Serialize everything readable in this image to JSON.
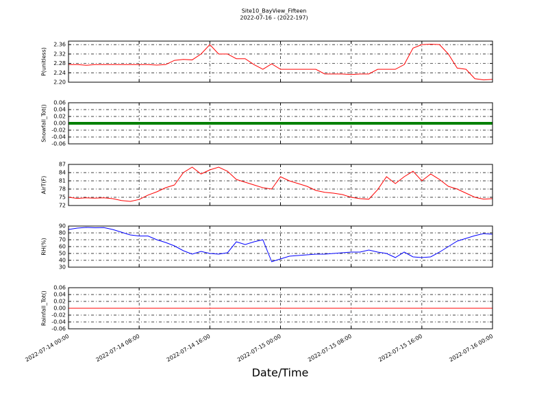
{
  "chart_data": [
    {
      "type": "line",
      "title": "Site10_BayView_Fifteen",
      "subtitle": "2022-07-16 - (2022-197)",
      "ylabel": "P(unitless)",
      "xlim": [
        "2022-07-14 00:00",
        "2022-07-16 00:00"
      ],
      "x": [
        "2022-07-14 00:00",
        "2022-07-14 01:00",
        "2022-07-14 02:00",
        "2022-07-14 03:00",
        "2022-07-14 04:00",
        "2022-07-14 05:00",
        "2022-07-14 06:00",
        "2022-07-14 07:00",
        "2022-07-14 08:00",
        "2022-07-14 09:00",
        "2022-07-14 10:00",
        "2022-07-14 11:00",
        "2022-07-14 12:00",
        "2022-07-14 13:00",
        "2022-07-14 14:00",
        "2022-07-14 15:00",
        "2022-07-14 16:00",
        "2022-07-14 17:00",
        "2022-07-14 18:00",
        "2022-07-14 19:00",
        "2022-07-14 20:00",
        "2022-07-14 21:00",
        "2022-07-14 22:00",
        "2022-07-14 23:00",
        "2022-07-15 00:00",
        "2022-07-15 01:00",
        "2022-07-15 02:00",
        "2022-07-15 03:00",
        "2022-07-15 04:00",
        "2022-07-15 05:00",
        "2022-07-15 06:00",
        "2022-07-15 07:00",
        "2022-07-15 08:00",
        "2022-07-15 09:00",
        "2022-07-15 10:00",
        "2022-07-15 11:00",
        "2022-07-15 12:00",
        "2022-07-15 13:00",
        "2022-07-15 14:00",
        "2022-07-15 15:00",
        "2022-07-15 16:00",
        "2022-07-15 17:00",
        "2022-07-15 18:00",
        "2022-07-15 19:00",
        "2022-07-15 20:00",
        "2022-07-15 21:00",
        "2022-07-15 22:00",
        "2022-07-15 23:00",
        "2022-07-16 00:00"
      ],
      "color": "#ff0000",
      "values": [
        2.275,
        2.275,
        2.272,
        2.275,
        2.275,
        2.275,
        2.275,
        2.275,
        2.275,
        2.275,
        2.273,
        2.275,
        2.293,
        2.297,
        2.295,
        2.32,
        2.36,
        2.32,
        2.32,
        2.3,
        2.3,
        2.275,
        2.255,
        2.278,
        2.255,
        2.255,
        2.255,
        2.255,
        2.255,
        2.235,
        2.235,
        2.235,
        2.233,
        2.235,
        2.235,
        2.255,
        2.255,
        2.255,
        2.275,
        2.345,
        2.36,
        2.362,
        2.36,
        2.32,
        2.26,
        2.255,
        2.215,
        2.21,
        2.212
      ],
      "ylim": [
        2.2,
        2.375
      ],
      "yticks": [
        {
          "value": 2.2,
          "label": "2.20"
        },
        2.24,
        2.28,
        2.32,
        2.36
      ],
      "grid": true
    },
    {
      "type": "line",
      "ylabel": "Snowfall_Tot()",
      "xlim": [
        "2022-07-14 00:00",
        "2022-07-16 00:00"
      ],
      "x": [
        "2022-07-14 00:00",
        "2022-07-14 01:00",
        "2022-07-14 02:00",
        "2022-07-14 03:00",
        "2022-07-14 04:00",
        "2022-07-14 05:00",
        "2022-07-14 06:00",
        "2022-07-14 07:00",
        "2022-07-14 08:00",
        "2022-07-14 09:00",
        "2022-07-14 10:00",
        "2022-07-14 11:00",
        "2022-07-14 12:00",
        "2022-07-14 13:00",
        "2022-07-14 14:00",
        "2022-07-14 15:00",
        "2022-07-14 16:00",
        "2022-07-14 17:00",
        "2022-07-14 18:00",
        "2022-07-14 19:00",
        "2022-07-14 20:00",
        "2022-07-14 21:00",
        "2022-07-14 22:00",
        "2022-07-14 23:00",
        "2022-07-15 00:00",
        "2022-07-15 01:00",
        "2022-07-15 02:00",
        "2022-07-15 03:00",
        "2022-07-15 04:00",
        "2022-07-15 05:00",
        "2022-07-15 06:00",
        "2022-07-15 07:00",
        "2022-07-15 08:00",
        "2022-07-15 09:00",
        "2022-07-15 10:00",
        "2022-07-15 11:00",
        "2022-07-15 12:00",
        "2022-07-15 13:00",
        "2022-07-15 14:00",
        "2022-07-15 15:00",
        "2022-07-15 16:00",
        "2022-07-15 17:00",
        "2022-07-15 18:00",
        "2022-07-15 19:00",
        "2022-07-15 20:00",
        "2022-07-15 21:00",
        "2022-07-15 22:00",
        "2022-07-15 23:00",
        "2022-07-16 00:00"
      ],
      "color": "#008000",
      "line_width": 4,
      "values": [
        0,
        0,
        0,
        0,
        0,
        0,
        0,
        0,
        0,
        0,
        0,
        0,
        0,
        0,
        0,
        0,
        0,
        0,
        0,
        0,
        0,
        0,
        0,
        0,
        0,
        0,
        0,
        0,
        0,
        0,
        0,
        0,
        0,
        0,
        0,
        0,
        0,
        0,
        0,
        0,
        0,
        0,
        0,
        0,
        0,
        0,
        0,
        0,
        0
      ],
      "ylim": [
        -0.06,
        0.06
      ],
      "yticks": [
        -0.06,
        -0.04,
        -0.02,
        {
          "value": 0,
          "label": "0.00"
        },
        0.02,
        0.04,
        0.06
      ],
      "grid": true
    },
    {
      "type": "line",
      "ylabel": "AirT(F)",
      "xlim": [
        "2022-07-14 00:00",
        "2022-07-16 00:00"
      ],
      "x": [
        "2022-07-14 00:00",
        "2022-07-14 01:00",
        "2022-07-14 02:00",
        "2022-07-14 03:00",
        "2022-07-14 04:00",
        "2022-07-14 05:00",
        "2022-07-14 06:00",
        "2022-07-14 07:00",
        "2022-07-14 08:00",
        "2022-07-14 09:00",
        "2022-07-14 10:00",
        "2022-07-14 11:00",
        "2022-07-14 12:00",
        "2022-07-14 13:00",
        "2022-07-14 14:00",
        "2022-07-14 15:00",
        "2022-07-14 16:00",
        "2022-07-14 17:00",
        "2022-07-14 18:00",
        "2022-07-14 19:00",
        "2022-07-14 20:00",
        "2022-07-14 21:00",
        "2022-07-14 22:00",
        "2022-07-14 23:00",
        "2022-07-15 00:00",
        "2022-07-15 01:00",
        "2022-07-15 02:00",
        "2022-07-15 03:00",
        "2022-07-15 04:00",
        "2022-07-15 05:00",
        "2022-07-15 06:00",
        "2022-07-15 07:00",
        "2022-07-15 08:00",
        "2022-07-15 09:00",
        "2022-07-15 10:00",
        "2022-07-15 11:00",
        "2022-07-15 12:00",
        "2022-07-15 13:00",
        "2022-07-15 14:00",
        "2022-07-15 15:00",
        "2022-07-15 16:00",
        "2022-07-15 17:00",
        "2022-07-15 18:00",
        "2022-07-15 19:00",
        "2022-07-15 20:00",
        "2022-07-15 21:00",
        "2022-07-15 22:00",
        "2022-07-15 23:00",
        "2022-07-16 00:00"
      ],
      "color": "#ff0000",
      "values": [
        75,
        74.6,
        74.8,
        74.7,
        74.8,
        74.5,
        73.8,
        73.5,
        74.2,
        75.8,
        77,
        78.5,
        79.5,
        84,
        86,
        83.5,
        85,
        86,
        84.5,
        81.5,
        80.5,
        79.5,
        78.5,
        78,
        82.5,
        81,
        80,
        79,
        77.5,
        76.8,
        76.5,
        76,
        75,
        74.5,
        74.3,
        77.8,
        82.5,
        80,
        82.5,
        84.5,
        81,
        83.5,
        81.5,
        79,
        78,
        76.5,
        75,
        74.3,
        74.5
      ],
      "ylim": [
        72,
        87
      ],
      "yticks": [
        72,
        75,
        78,
        81,
        84,
        87
      ],
      "grid": true
    },
    {
      "type": "line",
      "ylabel": "RH(%)",
      "xlim": [
        "2022-07-14 00:00",
        "2022-07-16 00:00"
      ],
      "x": [
        "2022-07-14 00:00",
        "2022-07-14 01:00",
        "2022-07-14 02:00",
        "2022-07-14 03:00",
        "2022-07-14 04:00",
        "2022-07-14 05:00",
        "2022-07-14 06:00",
        "2022-07-14 07:00",
        "2022-07-14 08:00",
        "2022-07-14 09:00",
        "2022-07-14 10:00",
        "2022-07-14 11:00",
        "2022-07-14 12:00",
        "2022-07-14 13:00",
        "2022-07-14 14:00",
        "2022-07-14 15:00",
        "2022-07-14 16:00",
        "2022-07-14 17:00",
        "2022-07-14 18:00",
        "2022-07-14 19:00",
        "2022-07-14 20:00",
        "2022-07-14 21:00",
        "2022-07-14 22:00",
        "2022-07-14 23:00",
        "2022-07-15 00:00",
        "2022-07-15 01:00",
        "2022-07-15 02:00",
        "2022-07-15 03:00",
        "2022-07-15 04:00",
        "2022-07-15 05:00",
        "2022-07-15 06:00",
        "2022-07-15 07:00",
        "2022-07-15 08:00",
        "2022-07-15 09:00",
        "2022-07-15 10:00",
        "2022-07-15 11:00",
        "2022-07-15 12:00",
        "2022-07-15 13:00",
        "2022-07-15 14:00",
        "2022-07-15 15:00",
        "2022-07-15 16:00",
        "2022-07-15 17:00",
        "2022-07-15 18:00",
        "2022-07-15 19:00",
        "2022-07-15 20:00",
        "2022-07-15 21:00",
        "2022-07-15 22:00",
        "2022-07-15 23:00",
        "2022-07-16 00:00"
      ],
      "color": "#0000ff",
      "values": [
        85,
        87,
        88,
        87.5,
        87.8,
        85,
        81,
        77,
        75.5,
        75.5,
        70,
        66,
        61,
        54,
        49,
        53,
        50,
        49,
        51,
        67,
        63,
        67,
        70,
        38,
        42,
        46,
        47,
        48,
        49,
        49,
        50,
        51,
        52,
        52,
        55,
        52,
        50,
        44,
        52,
        45,
        44,
        45,
        52,
        60,
        68,
        72,
        76,
        79,
        78
      ],
      "ylim": [
        30,
        90
      ],
      "yticks": [
        30,
        40,
        50,
        60,
        70,
        80,
        90
      ],
      "grid": true
    },
    {
      "type": "line",
      "ylabel": "Rainfall_Tot()",
      "xlabel": "Date/Time",
      "xlim": [
        "2022-07-14 00:00",
        "2022-07-16 00:00"
      ],
      "xticks": [
        "2022-07-14 00:00",
        "2022-07-14 08:00",
        "2022-07-14 16:00",
        "2022-07-15 00:00",
        "2022-07-15 08:00",
        "2022-07-15 16:00",
        "2022-07-16 00:00"
      ],
      "x": [
        "2022-07-14 00:00",
        "2022-07-14 01:00",
        "2022-07-14 02:00",
        "2022-07-14 03:00",
        "2022-07-14 04:00",
        "2022-07-14 05:00",
        "2022-07-14 06:00",
        "2022-07-14 07:00",
        "2022-07-14 08:00",
        "2022-07-14 09:00",
        "2022-07-14 10:00",
        "2022-07-14 11:00",
        "2022-07-14 12:00",
        "2022-07-14 13:00",
        "2022-07-14 14:00",
        "2022-07-14 15:00",
        "2022-07-14 16:00",
        "2022-07-14 17:00",
        "2022-07-14 18:00",
        "2022-07-14 19:00",
        "2022-07-14 20:00",
        "2022-07-14 21:00",
        "2022-07-14 22:00",
        "2022-07-14 23:00",
        "2022-07-15 00:00",
        "2022-07-15 01:00",
        "2022-07-15 02:00",
        "2022-07-15 03:00",
        "2022-07-15 04:00",
        "2022-07-15 05:00",
        "2022-07-15 06:00",
        "2022-07-15 07:00",
        "2022-07-15 08:00",
        "2022-07-15 09:00",
        "2022-07-15 10:00",
        "2022-07-15 11:00",
        "2022-07-15 12:00",
        "2022-07-15 13:00",
        "2022-07-15 14:00",
        "2022-07-15 15:00",
        "2022-07-15 16:00",
        "2022-07-15 17:00",
        "2022-07-15 18:00",
        "2022-07-15 19:00",
        "2022-07-15 20:00",
        "2022-07-15 21:00",
        "2022-07-15 22:00",
        "2022-07-15 23:00",
        "2022-07-16 00:00"
      ],
      "color": "#ff0000",
      "values": [
        0,
        0,
        0,
        0,
        0,
        0,
        0,
        0,
        0,
        0,
        0,
        0,
        0,
        0,
        0,
        0,
        0,
        0,
        0,
        0,
        0,
        0,
        0,
        0,
        0,
        0,
        0,
        0,
        0,
        0,
        0,
        0,
        0,
        0,
        0,
        0,
        0,
        0,
        0,
        0,
        0,
        0,
        0,
        0,
        0,
        0,
        0,
        0,
        0
      ],
      "ylim": [
        -0.06,
        0.06
      ],
      "yticks": [
        -0.06,
        -0.04,
        -0.02,
        {
          "value": 0,
          "label": "0.00"
        },
        0.02,
        0.04,
        0.06
      ],
      "grid": true
    }
  ]
}
